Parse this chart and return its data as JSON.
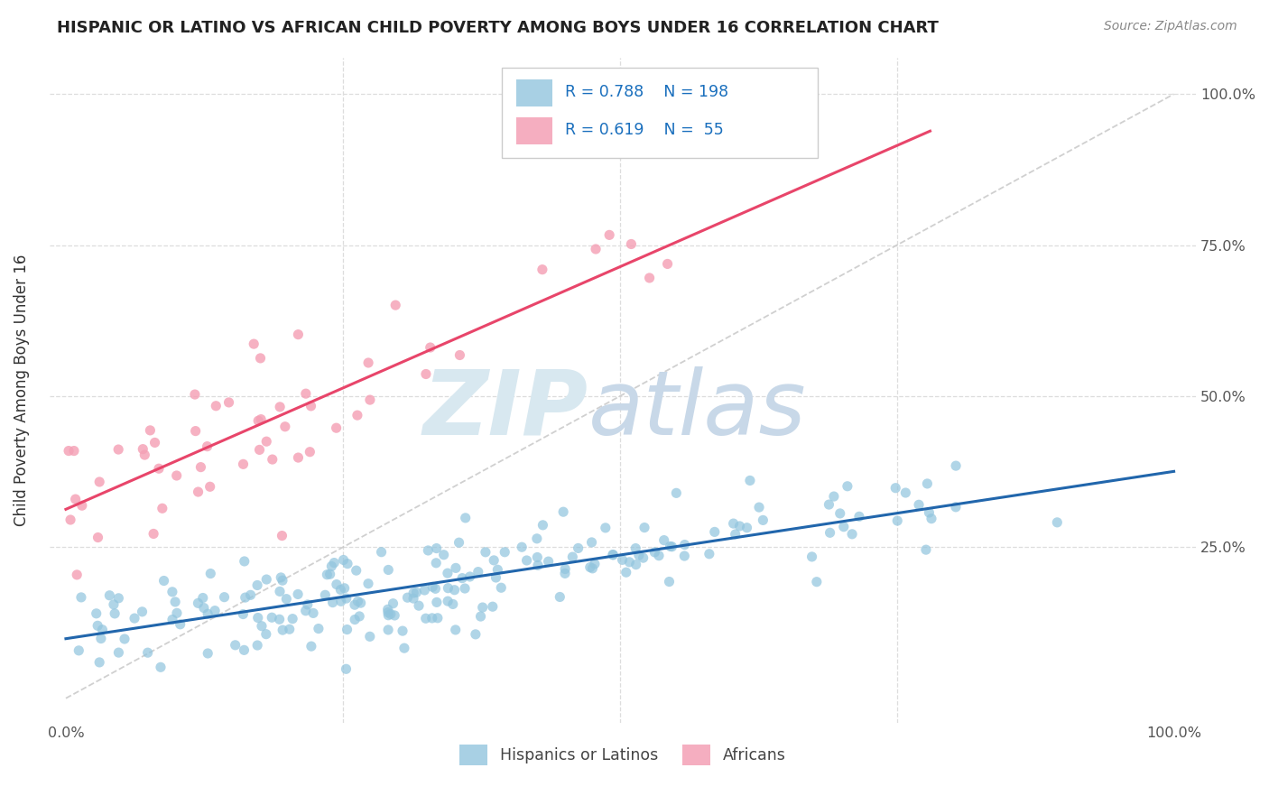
{
  "title": "HISPANIC OR LATINO VS AFRICAN CHILD POVERTY AMONG BOYS UNDER 16 CORRELATION CHART",
  "source": "Source: ZipAtlas.com",
  "ylabel": "Child Poverty Among Boys Under 16",
  "blue_color": "#92c5de",
  "pink_color": "#f4a0b5",
  "blue_line_color": "#2166ac",
  "pink_line_color": "#e8456a",
  "dashed_line_color": "#c8c8c8",
  "legend_r_blue": "R = 0.788",
  "legend_n_blue": "N = 198",
  "legend_r_pink": "R = 0.619",
  "legend_n_pink": "N =  55",
  "legend_label_blue": "Hispanics or Latinos",
  "legend_label_pink": "Africans",
  "legend_text_color": "#1a6fbd",
  "watermark_zip_color": "#d8e8f0",
  "watermark_atlas_color": "#c8d8e8",
  "title_color": "#222222",
  "source_color": "#888888",
  "axis_color": "#555555",
  "grid_color": "#dddddd"
}
